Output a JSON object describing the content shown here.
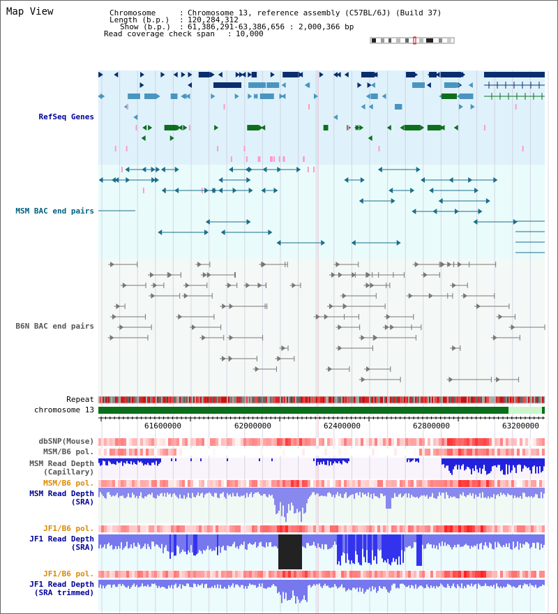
{
  "title": "Map View",
  "info": {
    "chromosome_key": "Chromosome",
    "chromosome_val": "Chromosome 13, reference assembly (C57BL/6J) (Build 37)",
    "length_key": "Length (b.p.)",
    "length_val": "120,284,312",
    "show_key": "Show (b.p.)",
    "show_val": "61,386,291-63,386,656 : 2,000,366 bp",
    "coverage_key": "Read coverage check span",
    "coverage_val": "10,000"
  },
  "tracks": {
    "refseq": "RefSeq Genes",
    "msm_bac": "MSM BAC end pairs",
    "b6n_bac": "B6N BAC end pairs",
    "repeat": "Repeat",
    "chromosome": "chromosome 13",
    "dbsnp": "dbSNP(Mouse)",
    "msm_b6_pol_1": "MSM/B6 pol.",
    "msm_depth_cap": "MSM Read Depth\n(Capillary)",
    "msm_b6_pol_2": "MSM/B6 pol.",
    "msm_depth_sra": "MSM Read Depth\n(SRA)",
    "jf1_b6_pol_1": "JF1/B6 pol.",
    "jf1_depth_sra": "JF1 Read Depth\n(SRA)",
    "jf1_b6_pol_2": "JF1/B6 pol.",
    "jf1_depth_trim": "JF1 Read Depth\n(SRA trimmed)"
  },
  "ruler": {
    "ticks": [
      "61600000",
      "62000000",
      "62400000",
      "62800000",
      "63200000"
    ]
  },
  "colors": {
    "refseq_bg": "#dff2fb",
    "bac_bg": "#eafbfb",
    "b6n_bg": "#f4f8f6",
    "dark_blue": "#0a2d6e",
    "mid_blue": "#4a95c0",
    "green": "#0f6e1c",
    "pink": "#ff99cc",
    "teal": "#1a6e8a",
    "gray": "#777777",
    "label_blue": "#000099",
    "label_teal": "#006080",
    "label_orange": "#dd8800"
  }
}
